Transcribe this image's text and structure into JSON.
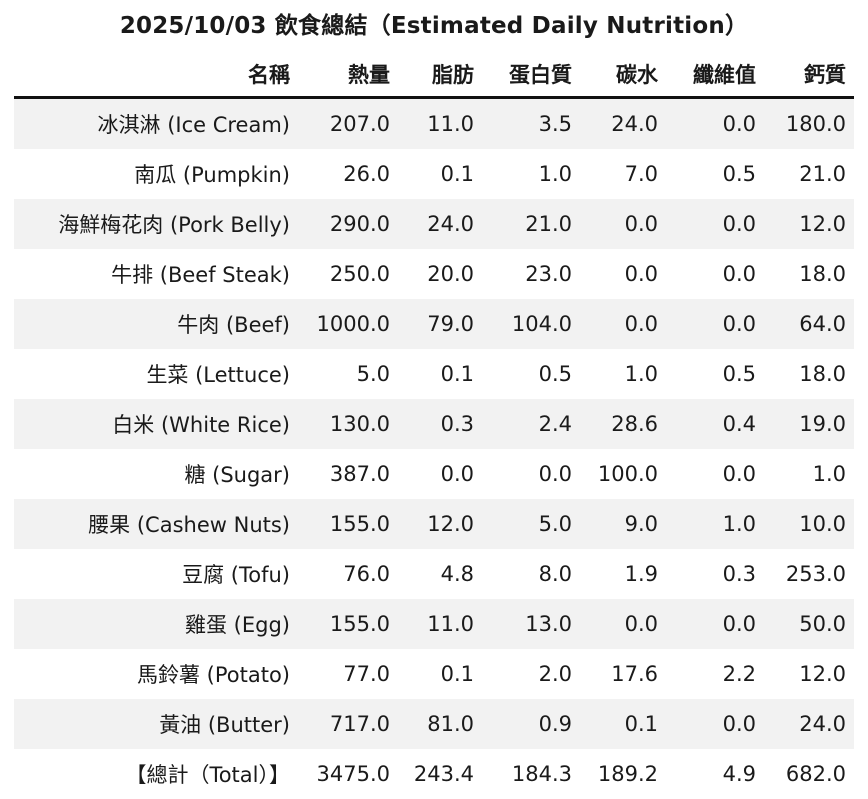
{
  "title": "2025/10/03 飲食總結（Estimated Daily Nutrition）",
  "colors": {
    "stripe": "#f2f2f2",
    "rule": "#111111",
    "text": "#1a1a1a"
  },
  "chart_data": {
    "type": "table",
    "title": "2025/10/03 飲食總結（Estimated Daily Nutrition）",
    "columns": [
      "名稱",
      "熱量",
      "脂肪",
      "蛋白質",
      "碳水",
      "纖維值",
      "鈣質"
    ],
    "rows": [
      [
        "冰淇淋 (Ice Cream)",
        "207.0",
        "11.0",
        "3.5",
        "24.0",
        "0.0",
        "180.0"
      ],
      [
        "南瓜 (Pumpkin)",
        "26.0",
        "0.1",
        "1.0",
        "7.0",
        "0.5",
        "21.0"
      ],
      [
        "海鮮梅花肉 (Pork Belly)",
        "290.0",
        "24.0",
        "21.0",
        "0.0",
        "0.0",
        "12.0"
      ],
      [
        "牛排 (Beef Steak)",
        "250.0",
        "20.0",
        "23.0",
        "0.0",
        "0.0",
        "18.0"
      ],
      [
        "牛肉 (Beef)",
        "1000.0",
        "79.0",
        "104.0",
        "0.0",
        "0.0",
        "64.0"
      ],
      [
        "生菜 (Lettuce)",
        "5.0",
        "0.1",
        "0.5",
        "1.0",
        "0.5",
        "18.0"
      ],
      [
        "白米 (White Rice)",
        "130.0",
        "0.3",
        "2.4",
        "28.6",
        "0.4",
        "19.0"
      ],
      [
        "糖 (Sugar)",
        "387.0",
        "0.0",
        "0.0",
        "100.0",
        "0.0",
        "1.0"
      ],
      [
        "腰果 (Cashew Nuts)",
        "155.0",
        "12.0",
        "5.0",
        "9.0",
        "1.0",
        "10.0"
      ],
      [
        "豆腐 (Tofu)",
        "76.0",
        "4.8",
        "8.0",
        "1.9",
        "0.3",
        "253.0"
      ],
      [
        "雞蛋 (Egg)",
        "155.0",
        "11.0",
        "13.0",
        "0.0",
        "0.0",
        "50.0"
      ],
      [
        "馬鈴薯 (Potato)",
        "77.0",
        "0.1",
        "2.0",
        "17.6",
        "2.2",
        "12.0"
      ],
      [
        "黃油 (Butter)",
        "717.0",
        "81.0",
        "0.9",
        "0.1",
        "0.0",
        "24.0"
      ]
    ],
    "total_row": [
      "【總計（Total）】",
      "3475.0",
      "243.4",
      "184.3",
      "189.2",
      "4.9",
      "682.0"
    ]
  }
}
